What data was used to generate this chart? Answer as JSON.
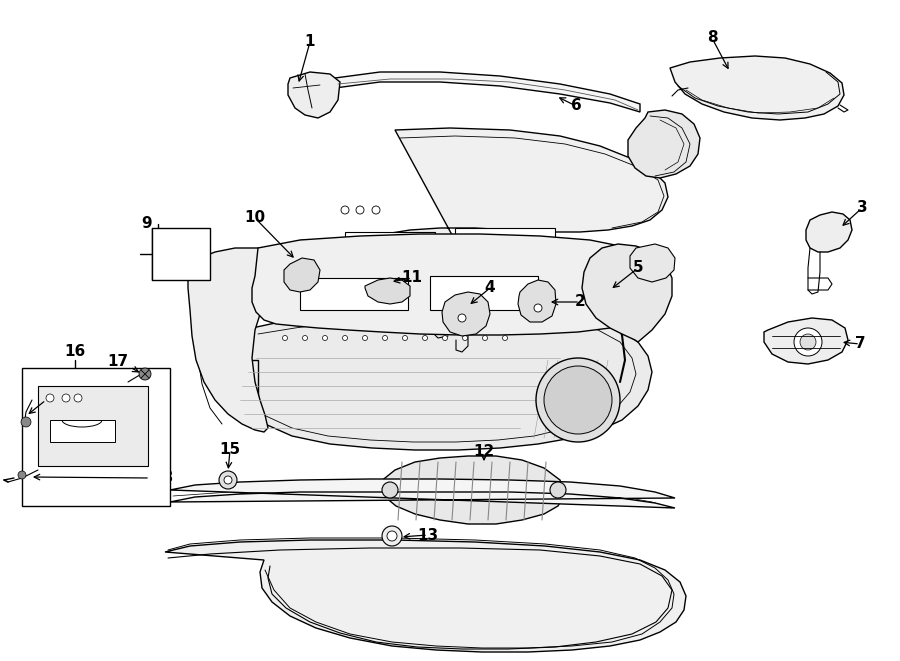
{
  "background_color": "#ffffff",
  "line_color": "#000000",
  "lw": 1.0,
  "fig_width": 9.0,
  "fig_height": 6.61,
  "dpi": 100
}
